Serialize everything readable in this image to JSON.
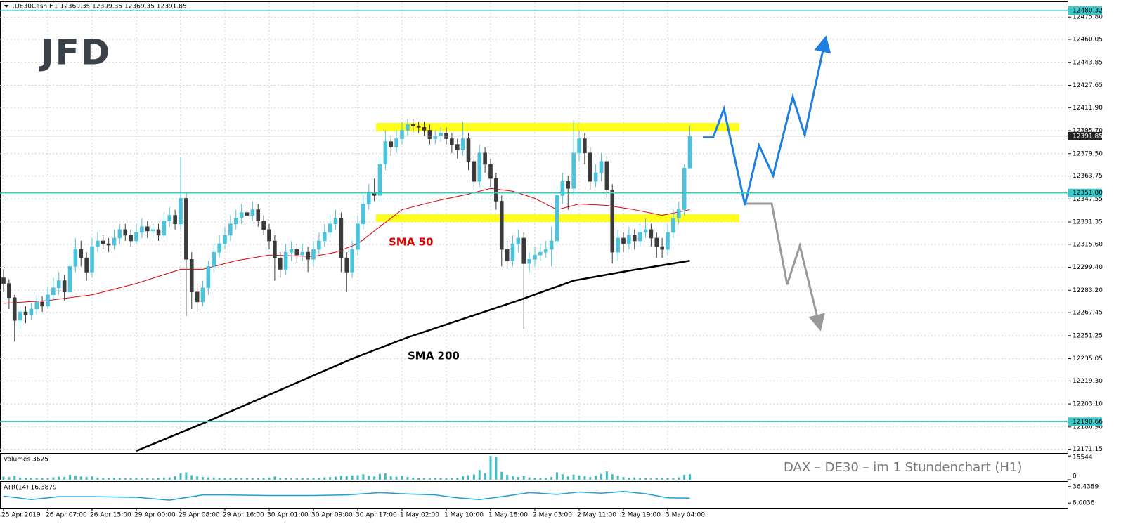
{
  "chart_data": {
    "type": "candlestick",
    "title": ".DE30Cash,H1  12369.35 12399.35 12369.35 12391.85",
    "logo": "JFD",
    "note": "DAX – DE30 –  im  1 Stundenchart (H1)",
    "bull_color": "#4cc3dc",
    "bear_color": "#3a3a3a",
    "grid": true,
    "ylim": [
      12169.5,
      12486.3
    ],
    "yticks": [
      {
        "value": 12475.8,
        "label": "12475.80"
      },
      {
        "value": 12460.05,
        "label": "12460.05"
      },
      {
        "value": 12443.85,
        "label": "12443.85"
      },
      {
        "value": 12427.65,
        "label": "12427.65"
      },
      {
        "value": 12411.9,
        "label": "12411.90"
      },
      {
        "value": 12395.7,
        "label": "12395.70"
      },
      {
        "value": 12379.5,
        "label": "12379.50"
      },
      {
        "value": 12363.75,
        "label": "12363.75"
      },
      {
        "value": 12347.55,
        "label": "12347.55"
      },
      {
        "value": 12331.35,
        "label": "12331.35"
      },
      {
        "value": 12315.6,
        "label": "12315.60"
      },
      {
        "value": 12299.4,
        "label": "12299.40"
      },
      {
        "value": 12283.2,
        "label": "12283.20"
      },
      {
        "value": 12267.45,
        "label": "12267.45"
      },
      {
        "value": 12251.25,
        "label": "12251.25"
      },
      {
        "value": 12235.05,
        "label": "12235.05"
      },
      {
        "value": 12219.3,
        "label": "12219.30"
      },
      {
        "value": 12203.1,
        "label": "12203.10"
      },
      {
        "value": 12186.9,
        "label": "12186.90"
      },
      {
        "value": 12171.15,
        "label": "12171.15"
      }
    ],
    "levels": [
      {
        "value": 12480.32,
        "label": "12480.32"
      },
      {
        "value": 12351.8,
        "label": "12351.80"
      },
      {
        "value": 12190.66,
        "label": "12190.66"
      }
    ],
    "level_color": "#3cc8c8",
    "last_price": {
      "value": 12391.85,
      "label": "12391.85"
    },
    "xticks": [
      {
        "value": 0,
        "label": "25 Apr 2019"
      },
      {
        "value": 8,
        "label": "26 Apr 07:00"
      },
      {
        "value": 16,
        "label": "26 Apr 15:00"
      },
      {
        "value": 24,
        "label": "29 Apr 00:00"
      },
      {
        "value": 32,
        "label": "29 Apr 08:00"
      },
      {
        "value": 40,
        "label": "29 Apr 16:00"
      },
      {
        "value": 48,
        "label": "30 Apr 01:00"
      },
      {
        "value": 56,
        "label": "30 Apr 09:00"
      },
      {
        "value": 64,
        "label": "30 Apr 17:00"
      },
      {
        "value": 72,
        "label": "1 May 02:00"
      },
      {
        "value": 80,
        "label": "1 May 10:00"
      },
      {
        "value": 88,
        "label": "1 May 18:00"
      },
      {
        "value": 96,
        "label": "2 May 03:00"
      },
      {
        "value": 104,
        "label": "2 May 11:00"
      },
      {
        "value": 112,
        "label": "2 May 19:00"
      },
      {
        "value": 120,
        "label": "3 May 04:00"
      }
    ],
    "ohlc": [
      [
        12292,
        12298,
        12282,
        12288
      ],
      [
        12288,
        12291,
        12270,
        12278
      ],
      [
        12278,
        12280,
        12247,
        12262
      ],
      [
        12262,
        12272,
        12256,
        12268
      ],
      [
        12268,
        12272,
        12260,
        12266
      ],
      [
        12266,
        12274,
        12262,
        12270
      ],
      [
        12270,
        12280,
        12266,
        12275
      ],
      [
        12275,
        12279,
        12268,
        12272
      ],
      [
        12272,
        12286,
        12270,
        12280
      ],
      [
        12280,
        12292,
        12276,
        12285
      ],
      [
        12285,
        12296,
        12280,
        12290
      ],
      [
        12290,
        12294,
        12276,
        12282
      ],
      [
        12282,
        12306,
        12278,
        12300
      ],
      [
        12300,
        12320,
        12296,
        12312
      ],
      [
        12312,
        12318,
        12300,
        12306
      ],
      [
        12306,
        12310,
        12290,
        12296
      ],
      [
        12296,
        12320,
        12292,
        12314
      ],
      [
        12314,
        12324,
        12310,
        12318
      ],
      [
        12318,
        12322,
        12312,
        12316
      ],
      [
        12316,
        12320,
        12310,
        12315
      ],
      [
        12315,
        12326,
        12312,
        12320
      ],
      [
        12320,
        12330,
        12316,
        12326
      ],
      [
        12326,
        12330,
        12318,
        12322
      ],
      [
        12322,
        12326,
        12314,
        12318
      ],
      [
        12318,
        12330,
        12316,
        12324
      ],
      [
        12324,
        12334,
        12320,
        12328
      ],
      [
        12328,
        12332,
        12320,
        12325
      ],
      [
        12325,
        12330,
        12320,
        12326
      ],
      [
        12326,
        12330,
        12318,
        12322
      ],
      [
        12322,
        12338,
        12320,
        12332
      ],
      [
        12332,
        12342,
        12328,
        12336
      ],
      [
        12336,
        12340,
        12326,
        12330
      ],
      [
        12330,
        12377,
        12326,
        12348
      ],
      [
        12348,
        12352,
        12265,
        12305
      ],
      [
        12305,
        12310,
        12270,
        12282
      ],
      [
        12282,
        12288,
        12268,
        12275
      ],
      [
        12275,
        12290,
        12272,
        12285
      ],
      [
        12285,
        12304,
        12280,
        12300
      ],
      [
        12300,
        12316,
        12296,
        12310
      ],
      [
        12310,
        12322,
        12306,
        12316
      ],
      [
        12316,
        12328,
        12312,
        12322
      ],
      [
        12322,
        12336,
        12318,
        12330
      ],
      [
        12330,
        12340,
        12326,
        12334
      ],
      [
        12334,
        12344,
        12330,
        12338
      ],
      [
        12338,
        12342,
        12330,
        12336
      ],
      [
        12336,
        12346,
        12332,
        12340
      ],
      [
        12340,
        12344,
        12328,
        12332
      ],
      [
        12332,
        12336,
        12322,
        12326
      ],
      [
        12326,
        12330,
        12312,
        12318
      ],
      [
        12318,
        12322,
        12290,
        12306
      ],
      [
        12306,
        12310,
        12292,
        12298
      ],
      [
        12298,
        12316,
        12294,
        12310
      ],
      [
        12310,
        12318,
        12304,
        12312
      ],
      [
        12312,
        12316,
        12302,
        12308
      ],
      [
        12308,
        12316,
        12304,
        12310
      ],
      [
        12310,
        12314,
        12296,
        12305
      ],
      [
        12305,
        12318,
        12300,
        12312
      ],
      [
        12312,
        12324,
        12308,
        12318
      ],
      [
        12318,
        12330,
        12314,
        12324
      ],
      [
        12324,
        12336,
        12320,
        12330
      ],
      [
        12330,
        12340,
        12326,
        12334
      ],
      [
        12334,
        12338,
        12296,
        12306
      ],
      [
        12306,
        12310,
        12282,
        12296
      ],
      [
        12296,
        12318,
        12292,
        12312
      ],
      [
        12312,
        12336,
        12308,
        12330
      ],
      [
        12330,
        12350,
        12326,
        12344
      ],
      [
        12344,
        12358,
        12340,
        12352
      ],
      [
        12352,
        12362,
        12346,
        12350
      ],
      [
        12350,
        12378,
        12346,
        12372
      ],
      [
        12372,
        12396,
        12368,
        12388
      ],
      [
        12388,
        12392,
        12378,
        12384
      ],
      [
        12384,
        12396,
        12380,
        12390
      ],
      [
        12390,
        12402,
        12386,
        12396
      ],
      [
        12396,
        12404,
        12392,
        12400
      ],
      [
        12400,
        12404,
        12394,
        12399
      ],
      [
        12399,
        12402,
        12394,
        12398
      ],
      [
        12398,
        12402,
        12392,
        12396
      ],
      [
        12396,
        12400,
        12386,
        12390
      ],
      [
        12390,
        12396,
        12386,
        12392
      ],
      [
        12392,
        12398,
        12388,
        12394
      ],
      [
        12394,
        12398,
        12386,
        12390
      ],
      [
        12390,
        12394,
        12380,
        12386
      ],
      [
        12386,
        12390,
        12376,
        12382
      ],
      [
        12382,
        12402,
        12378,
        12390
      ],
      [
        12390,
        12394,
        12368,
        12374
      ],
      [
        12374,
        12378,
        12354,
        12360
      ],
      [
        12360,
        12386,
        12356,
        12380
      ],
      [
        12380,
        12384,
        12366,
        12372
      ],
      [
        12372,
        12376,
        12356,
        12362
      ],
      [
        12362,
        12366,
        12340,
        12346
      ],
      [
        12346,
        12350,
        12300,
        12312
      ],
      [
        12312,
        12318,
        12298,
        12304
      ],
      [
        12304,
        12322,
        12300,
        12316
      ],
      [
        12316,
        12326,
        12310,
        12320
      ],
      [
        12320,
        12324,
        12256,
        12302
      ],
      [
        12302,
        12310,
        12296,
        12305
      ],
      [
        12305,
        12314,
        12300,
        12308
      ],
      [
        12308,
        12316,
        12304,
        12310
      ],
      [
        12310,
        12318,
        12306,
        12312
      ],
      [
        12312,
        12328,
        12300,
        12318
      ],
      [
        12318,
        12356,
        12314,
        12350
      ],
      [
        12350,
        12366,
        12344,
        12360
      ],
      [
        12360,
        12364,
        12340,
        12355
      ],
      [
        12355,
        12403,
        12350,
        12380
      ],
      [
        12380,
        12396,
        12374,
        12390
      ],
      [
        12390,
        12394,
        12372,
        12380
      ],
      [
        12380,
        12384,
        12354,
        12360
      ],
      [
        12360,
        12372,
        12356,
        12366
      ],
      [
        12366,
        12380,
        12360,
        12374
      ],
      [
        12374,
        12378,
        12348,
        12354
      ],
      [
        12354,
        12358,
        12302,
        12310
      ],
      [
        12310,
        12326,
        12304,
        12320
      ],
      [
        12320,
        12324,
        12310,
        12316
      ],
      [
        12316,
        12328,
        12312,
        12322
      ],
      [
        12322,
        12326,
        12312,
        12318
      ],
      [
        12318,
        12330,
        12314,
        12324
      ],
      [
        12324,
        12334,
        12320,
        12326
      ],
      [
        12326,
        12330,
        12314,
        12320
      ],
      [
        12320,
        12324,
        12306,
        12314
      ],
      [
        12314,
        12320,
        12306,
        12312
      ],
      [
        12312,
        12330,
        12308,
        12324
      ],
      [
        12324,
        12340,
        12320,
        12334
      ],
      [
        12334,
        12346,
        12330,
        12340
      ],
      [
        12340,
        12372,
        12336,
        12369.35
      ],
      [
        12369.35,
        12399.35,
        12369.35,
        12391.85
      ]
    ],
    "sma": [
      {
        "name": "SMA 50",
        "color": "#e00000",
        "x": [
          0,
          8,
          16,
          24,
          32,
          36,
          42,
          48,
          56,
          60,
          64,
          68,
          72,
          78,
          84,
          88,
          92,
          96,
          100,
          104,
          109,
          114,
          119,
          124
        ],
        "values": [
          12274,
          12276,
          12280,
          12288,
          12298,
          12298,
          12304,
          12308,
          12307,
          12310,
          12316,
          12328,
          12340,
          12346,
          12351,
          12355,
          12353,
          12348,
          12340,
          12344,
          12343,
          12340,
          12336,
          12340
        ]
      },
      {
        "name": "SMA 200",
        "color": "#000000",
        "x": [
          24,
          37,
          50,
          63,
          73,
          83,
          93,
          103,
          113,
          124
        ],
        "values": [
          12170,
          12191,
          12213,
          12235,
          12250,
          12263,
          12276,
          12290,
          12297,
          12304
        ]
      }
    ],
    "volumes": {
      "name": "Volumes 3625",
      "color": "#3cc0c8",
      "ylim": [
        0,
        17000
      ],
      "yticks": [
        15544,
        0
      ],
      "values": [
        2100,
        1800,
        2600,
        1500,
        1200,
        1400,
        1000,
        1300,
        900,
        1600,
        2000,
        1800,
        3200,
        2600,
        2200,
        1800,
        2400,
        1500,
        1200,
        1100,
        1300,
        1000,
        900,
        1200,
        1400,
        1100,
        900,
        800,
        1000,
        1500,
        1600,
        2400,
        4200,
        4800,
        3000,
        2200,
        1800,
        1600,
        1500,
        1400,
        1200,
        1300,
        1100,
        1000,
        1200,
        900,
        1100,
        1300,
        1500,
        2200,
        1400,
        1100,
        1000,
        900,
        1200,
        1000,
        1300,
        1400,
        1600,
        1800,
        2000,
        2600,
        2400,
        2800,
        3000,
        3600,
        2600,
        2200,
        3800,
        4200,
        2400,
        2000,
        2600,
        1800,
        1400,
        1200,
        1000,
        1300,
        1100,
        1000,
        1200,
        900,
        1400,
        2400,
        3000,
        3400,
        6400,
        4200,
        15544,
        15000,
        5200,
        3200,
        2400,
        1800,
        2600,
        1600,
        1400,
        1200,
        1100,
        1800,
        4800,
        3600,
        2200,
        3400,
        2800,
        2400,
        1800,
        2600,
        3800,
        5600,
        3600,
        2600,
        1800,
        1400,
        1600,
        1200,
        1000,
        900,
        1100,
        1400,
        1200,
        1000,
        1600,
        3200,
        3625
      ]
    },
    "atr": {
      "name": "ATR(14) 16.3879",
      "color": "#1e9fd6",
      "ylim": [
        -0.3,
        44.7
      ],
      "yticks": [
        36.4389,
        8.0036
      ],
      "x": [
        0,
        5,
        10,
        16,
        24,
        30,
        36,
        40,
        48,
        56,
        62,
        68,
        72,
        78,
        82,
        86,
        90,
        95,
        100,
        104,
        108,
        112,
        116,
        120,
        124
      ],
      "values": [
        20,
        14,
        19,
        19,
        18,
        13,
        22,
        22,
        21,
        21,
        22,
        26,
        24,
        22,
        17,
        14,
        19,
        26,
        23,
        27,
        25,
        28,
        24,
        17,
        16.3879
      ]
    }
  }
}
